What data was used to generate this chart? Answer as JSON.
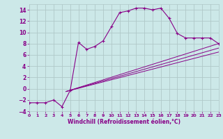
{
  "xlabel": "Windchill (Refroidissement éolien,°C)",
  "bg_color": "#cce8e8",
  "grid_color": "#b0c8c8",
  "line_color": "#880088",
  "xlim": [
    0,
    23
  ],
  "ylim": [
    -4,
    15
  ],
  "xticks": [
    0,
    1,
    2,
    3,
    4,
    5,
    6,
    7,
    8,
    9,
    10,
    11,
    12,
    13,
    14,
    15,
    16,
    17,
    18,
    19,
    20,
    21,
    22,
    23
  ],
  "yticks": [
    -4,
    -2,
    0,
    2,
    4,
    6,
    8,
    10,
    12,
    14
  ],
  "curve_x": [
    0,
    1,
    2,
    3,
    4,
    5,
    6,
    7,
    8,
    9,
    10,
    11,
    12,
    13,
    14,
    15,
    16,
    17,
    18,
    19,
    20,
    21,
    22,
    23
  ],
  "curve_y": [
    -2.5,
    -2.5,
    -2.5,
    -2,
    -3.2,
    -0.3,
    8.2,
    7.0,
    7.5,
    8.5,
    11.0,
    13.5,
    13.8,
    14.3,
    14.3,
    14.0,
    14.3,
    12.5,
    9.8,
    9.0,
    9.0,
    9.0,
    9.0,
    8.0
  ],
  "line1_x": [
    4.5,
    23
  ],
  "line1_y": [
    -0.5,
    8.0
  ],
  "line2_x": [
    4.5,
    23
  ],
  "line2_y": [
    -0.5,
    7.2
  ],
  "line3_x": [
    4.5,
    23
  ],
  "line3_y": [
    -0.5,
    6.5
  ]
}
